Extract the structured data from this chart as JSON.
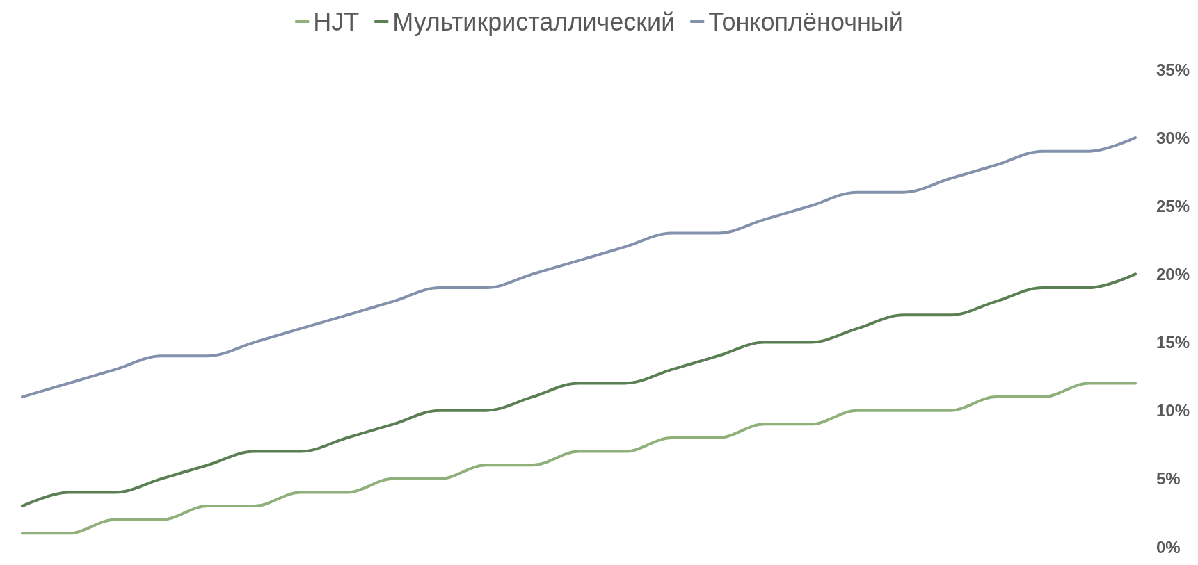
{
  "chart_data": {
    "type": "line",
    "categories": [
      null,
      null,
      null,
      null,
      null,
      null,
      null,
      null,
      null,
      null,
      null,
      null,
      null,
      null,
      null,
      null,
      null,
      null,
      null,
      null,
      null,
      null,
      null,
      null,
      null
    ],
    "series": [
      {
        "name": "HJT",
        "color": "#8fb07a",
        "values": [
          1,
          1,
          2,
          2,
          3,
          3,
          4,
          4,
          5,
          5,
          6,
          6,
          7,
          7,
          8,
          8,
          9,
          9,
          10,
          10,
          10,
          11,
          11,
          12,
          12
        ]
      },
      {
        "name": "Мультикристаллический",
        "color": "#5a7f52",
        "values": [
          3,
          4,
          4,
          5,
          6,
          7,
          7,
          8,
          9,
          10,
          10,
          11,
          12,
          12,
          13,
          14,
          15,
          15,
          16,
          17,
          17,
          18,
          19,
          19,
          20
        ]
      },
      {
        "name": "Тонкоплёночный",
        "color": "#8391ad",
        "values": [
          11,
          12,
          13,
          14,
          14,
          15,
          16,
          17,
          18,
          19,
          19,
          20,
          21,
          22,
          23,
          23,
          24,
          25,
          26,
          26,
          27,
          28,
          29,
          29,
          30
        ]
      }
    ],
    "ylim": [
      0,
      35
    ],
    "yticks": [
      {
        "value": 0,
        "label": "0%"
      },
      {
        "value": 5,
        "label": "5%"
      },
      {
        "value": 10,
        "label": "10%"
      },
      {
        "value": 15,
        "label": "15%"
      },
      {
        "value": 20,
        "label": "20%"
      },
      {
        "value": 25,
        "label": "25%"
      },
      {
        "value": 30,
        "label": "30%"
      },
      {
        "value": 35,
        "label": "35%"
      }
    ],
    "grid": false,
    "legend": "top",
    "tick_labels": "y",
    "marker": "none",
    "line_style": "solid"
  }
}
